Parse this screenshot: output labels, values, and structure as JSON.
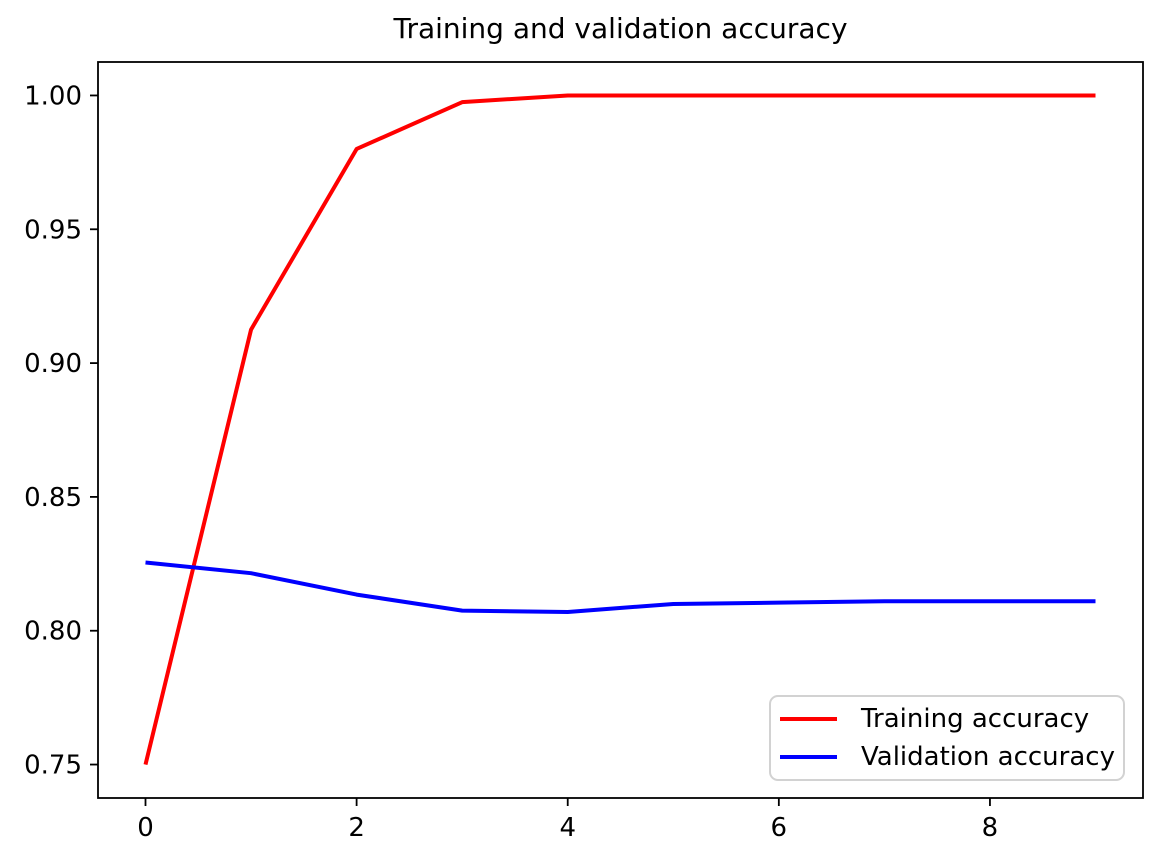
{
  "figure": {
    "background": "#ffffff"
  },
  "colors": {
    "axis": "#000000",
    "text": "#000000",
    "legend_border": "#d2d2d2",
    "training_line": "#ff0000",
    "validation_line": "#0000ff"
  },
  "chart_data": {
    "type": "line",
    "title": "Training and validation accuracy",
    "xlabel": "",
    "ylabel": "",
    "x": [
      0,
      1,
      2,
      3,
      4,
      5,
      6,
      7,
      8,
      9
    ],
    "series": [
      {
        "name": "Training accuracy",
        "color": "#ff0000",
        "values": [
          0.75,
          0.9125,
          0.98,
          0.9975,
          1.0,
          1.0,
          1.0,
          1.0,
          1.0,
          1.0
        ]
      },
      {
        "name": "Validation accuracy",
        "color": "#0000ff",
        "values": [
          0.8255,
          0.8215,
          0.8135,
          0.8075,
          0.807,
          0.81,
          0.8105,
          0.811,
          0.811,
          0.811
        ]
      }
    ],
    "xlim": [
      -0.45,
      9.45
    ],
    "ylim": [
      0.7375,
      1.0125
    ],
    "xticks": {
      "values": [
        0,
        2,
        4,
        6,
        8
      ],
      "labels": [
        "0",
        "2",
        "4",
        "6",
        "8"
      ]
    },
    "yticks": {
      "values": [
        0.75,
        0.8,
        0.85,
        0.9,
        0.95,
        1.0
      ],
      "labels": [
        "0.75",
        "0.80",
        "0.85",
        "0.90",
        "0.95",
        "1.00"
      ]
    },
    "grid": false,
    "legend_position": "lower right"
  }
}
